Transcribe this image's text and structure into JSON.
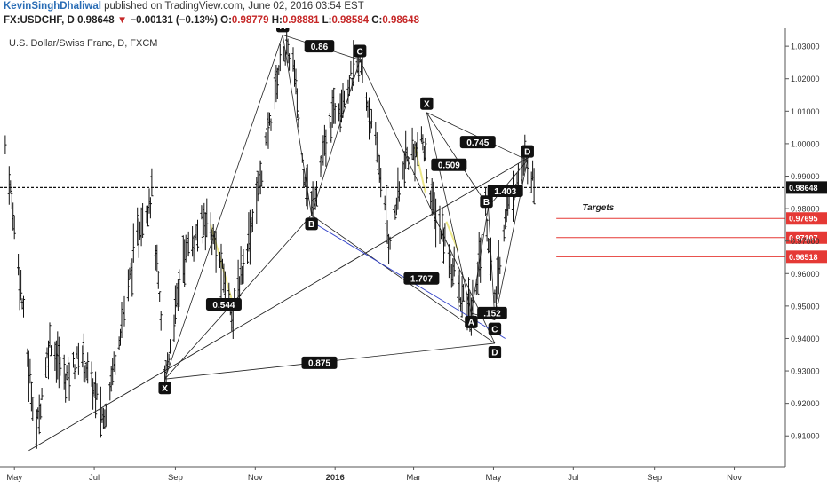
{
  "header": {
    "author": "KevinSinghDhaliwal",
    "published": "published on TradingView.com, June 02, 2016 03:54 EST",
    "symbol": "FX:USDCHF, D",
    "last": "0.98648",
    "change": "−0.00131 (−0.13%)",
    "open_label": "O:",
    "open": "0.98779",
    "high_label": "H:",
    "high": "0.98881",
    "low_label": "L:",
    "low": "0.98584",
    "close_label": "C:",
    "close": "0.98648"
  },
  "chart_data": {
    "type": "candlestick",
    "title": "U.S. Dollar/Swiss Franc, D, FXCM",
    "ylim": [
      0.9005,
      1.0355
    ],
    "y_ticks": [
      1.03,
      1.02,
      1.01,
      1.0,
      0.99,
      0.98,
      0.97,
      0.96,
      0.95,
      0.94,
      0.93,
      0.92,
      0.91
    ],
    "y_tick_labels": [
      "1.03000",
      "1.02000",
      "1.01000",
      "1.00000",
      "0.99000",
      "0.98000",
      "0.97000",
      "0.96000",
      "0.95000",
      "0.94000",
      "0.93000",
      "0.92000",
      "0.91000"
    ],
    "x_ticks": [
      "May",
      "Jul",
      "Sep",
      "Nov",
      "2016",
      "Mar",
      "May",
      "Jul",
      "Sep",
      "Nov"
    ],
    "x_range": [
      "2015-04-20",
      "2016-12-10"
    ],
    "x_tick_dates": [
      "2015-05-01",
      "2015-07-01",
      "2015-09-01",
      "2015-11-01",
      "2016-01-01",
      "2016-03-01",
      "2016-05-01",
      "2016-07-01",
      "2016-09-01",
      "2016-11-01"
    ],
    "price_path": [
      [
        "2015-04-24",
        1.0
      ],
      [
        "2015-05-05",
        0.96
      ],
      [
        "2015-05-12",
        0.93
      ],
      [
        "2015-05-18",
        0.912
      ],
      [
        "2015-05-28",
        0.94
      ],
      [
        "2015-06-08",
        0.928
      ],
      [
        "2015-06-22",
        0.935
      ],
      [
        "2015-07-08",
        0.915
      ],
      [
        "2015-07-25",
        0.952
      ],
      [
        "2015-08-05",
        0.975
      ],
      [
        "2015-08-14",
        0.985
      ],
      [
        "2015-08-24",
        0.927
      ],
      [
        "2015-09-07",
        0.965
      ],
      [
        "2015-09-25",
        0.978
      ],
      [
        "2015-10-15",
        0.948
      ],
      [
        "2015-10-24",
        0.965
      ],
      [
        "2015-11-05",
        0.99
      ],
      [
        "2015-11-22",
        1.03
      ],
      [
        "2015-11-30",
        1.025
      ],
      [
        "2015-12-07",
        0.995
      ],
      [
        "2015-12-14",
        0.98
      ],
      [
        "2015-12-31",
        1.01
      ],
      [
        "2016-01-20",
        1.025
      ],
      [
        "2016-02-05",
        0.99
      ],
      [
        "2016-02-11",
        0.97
      ],
      [
        "2016-02-24",
        0.995
      ],
      [
        "2016-03-08",
        1.0
      ],
      [
        "2016-03-16",
        0.98
      ],
      [
        "2016-03-25",
        0.97
      ],
      [
        "2016-04-06",
        0.952
      ],
      [
        "2016-04-15",
        0.948
      ],
      [
        "2016-04-25",
        0.98
      ],
      [
        "2016-05-02",
        0.95
      ],
      [
        "2016-05-10",
        0.978
      ],
      [
        "2016-05-20",
        0.99
      ],
      [
        "2016-05-27",
        0.9955
      ],
      [
        "2016-06-02",
        0.9865
      ]
    ],
    "current_price": 0.98648,
    "current_price_label": "0.98648",
    "targets_label": "Targets",
    "target_levels": [
      {
        "value": 0.97695,
        "label": "0.97695"
      },
      {
        "value": 0.97107,
        "label": "0.97107"
      },
      {
        "value": 0.96518,
        "label": "0.96518"
      }
    ],
    "pattern_points": [
      {
        "id": "A1",
        "label": "A",
        "date": "2015-11-22",
        "price": 1.0335
      },
      {
        "id": "B1",
        "label": "B",
        "date": "2015-12-14",
        "price": 0.978
      },
      {
        "id": "C1",
        "label": "C",
        "date": "2016-01-20",
        "price": 1.0258
      },
      {
        "id": "X1",
        "label": "X",
        "date": "2015-08-24",
        "price": 0.9275
      },
      {
        "id": "X2",
        "label": "X",
        "date": "2016-03-11",
        "price": 1.0096
      },
      {
        "id": "A2",
        "label": "A",
        "date": "2016-04-14",
        "price": 0.9478
      },
      {
        "id": "B2",
        "label": "B",
        "date": "2016-04-27",
        "price": 0.9805
      },
      {
        "id": "C2",
        "label": "C",
        "date": "2016-05-02",
        "price": 0.9457
      },
      {
        "id": "D2",
        "label": "D",
        "date": "2016-05-27",
        "price": 0.9949
      },
      {
        "id": "D1",
        "label": "D",
        "date": "2016-05-02",
        "price": 0.9385
      }
    ],
    "ratios": [
      {
        "label": "0.86",
        "date": "2015-12-20",
        "price": 1.03
      },
      {
        "label": "0.544",
        "date": "2015-10-08",
        "price": 0.9505
      },
      {
        "label": "1.707",
        "date": "2016-03-07",
        "price": 0.9585
      },
      {
        "label": "0.875",
        "date": "2015-12-20",
        "price": 0.9325
      },
      {
        "label": "0.745",
        "date": "2016-04-19",
        "price": 1.0005
      },
      {
        "label": "0.509",
        "date": "2016-03-28",
        "price": 0.9935
      },
      {
        "label": "1.403",
        "date": "2016-05-10",
        "price": 0.9855
      },
      {
        "label": ".152",
        "date": "2016-04-30",
        "price": 0.9478
      }
    ],
    "pattern_lines": [
      [
        "X1",
        "A1"
      ],
      [
        "A1",
        "B1"
      ],
      [
        "B1",
        "C1"
      ],
      [
        "C1",
        "D1"
      ],
      [
        "X1",
        "B1"
      ],
      [
        "X1",
        "D1"
      ],
      [
        "A1",
        "C1"
      ],
      [
        "B1",
        "D1"
      ],
      [
        "X2",
        "A2"
      ],
      [
        "A2",
        "B2"
      ],
      [
        "B2",
        "C2"
      ],
      [
        "C2",
        "D2"
      ],
      [
        "X2",
        "B2"
      ],
      [
        "X2",
        "D2"
      ],
      [
        "A2",
        "C2"
      ],
      [
        "B2",
        "D2"
      ]
    ],
    "channel_lines": [
      {
        "from": [
          "2015-05-12",
          0.9055
        ],
        "to": [
          "2016-05-31",
          0.9965
        ]
      },
      {
        "from": [
          "2015-12-14",
          0.976
        ],
        "to": [
          "2016-05-10",
          0.94
        ],
        "color": "#3040c8"
      }
    ],
    "colors": {
      "bar": "#111111",
      "target": "#e53935",
      "channel": "#3040c8",
      "highlight": "#e8e26a"
    }
  }
}
